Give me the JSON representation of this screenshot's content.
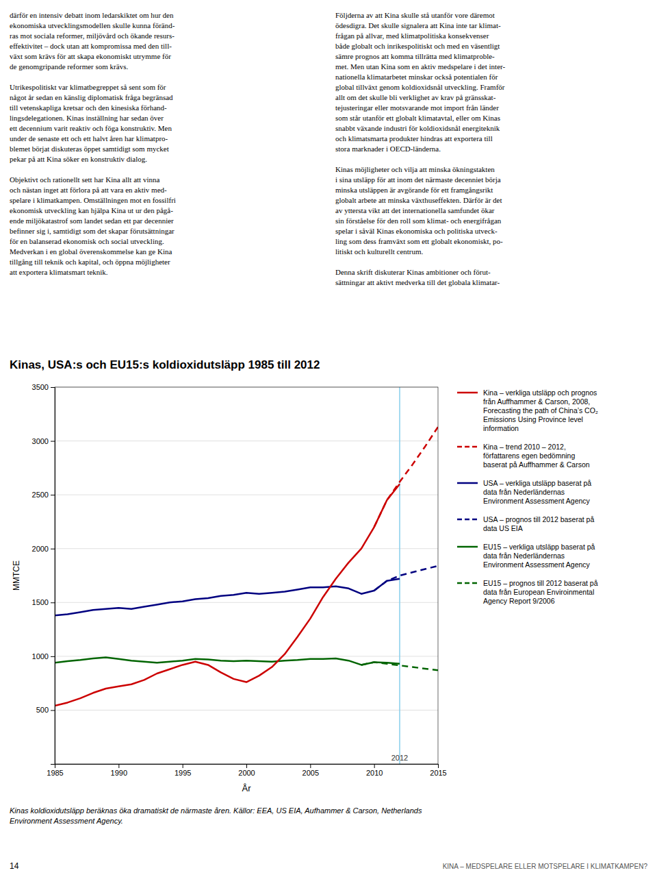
{
  "chart_data": {
    "type": "line",
    "title": "Kinas, USA:s och EU15:s koldioxidutsläpp 1985 till 2012",
    "xlabel": "År",
    "ylabel": "MMTCE",
    "xlim": [
      1985,
      2015
    ],
    "ylim": [
      0,
      3500
    ],
    "xticks": [
      1985,
      1990,
      1995,
      2000,
      2005,
      2010,
      2015
    ],
    "yticks": [
      500,
      1000,
      1500,
      2000,
      2500,
      3000,
      3500
    ],
    "grid": true,
    "vline": {
      "x": 2012,
      "color": "#87CEEB"
    },
    "annotations": [
      {
        "text": "2012",
        "x": 2012,
        "y": 20
      }
    ],
    "series": [
      {
        "name": "Kina – verkliga utsläpp och prognos\nfrån Auffhammer & Carson, 2008,\nForecasting the path of China’s CO₂\nEmissions Using Province level\ninformation",
        "color": "#CC0000",
        "line_style": "solid",
        "x": [
          1985,
          1986,
          1987,
          1988,
          1989,
          1990,
          1991,
          1992,
          1993,
          1994,
          1995,
          1996,
          1997,
          1998,
          1999,
          2000,
          2001,
          2002,
          2003,
          2004,
          2005,
          2006,
          2007,
          2008,
          2009,
          2010,
          2011,
          2012
        ],
        "values": [
          540,
          570,
          610,
          660,
          700,
          720,
          740,
          780,
          840,
          880,
          920,
          950,
          920,
          850,
          790,
          760,
          820,
          900,
          1020,
          1180,
          1350,
          1550,
          1720,
          1870,
          2000,
          2200,
          2450,
          2600
        ]
      },
      {
        "name": "Kina – trend 2010 – 2012,\nförfattarens egen bedömning\nbaserat på Auffhammer & Carson",
        "color": "#CC0000",
        "line_style": "dashed",
        "x": [
          2010,
          2011,
          2012,
          2013,
          2014,
          2015
        ],
        "values": [
          2200,
          2450,
          2620,
          2780,
          2950,
          3130
        ]
      },
      {
        "name": "USA – verkliga utsläpp baserat på\ndata från Nederländernas\nEnvironment Assessment Agency",
        "color": "#000080",
        "line_style": "solid",
        "x": [
          1985,
          1986,
          1987,
          1988,
          1989,
          1990,
          1991,
          1992,
          1993,
          1994,
          1995,
          1996,
          1997,
          1998,
          1999,
          2000,
          2001,
          2002,
          2003,
          2004,
          2005,
          2006,
          2007,
          2008,
          2009,
          2010,
          2011,
          2012
        ],
        "values": [
          1380,
          1390,
          1410,
          1430,
          1440,
          1450,
          1440,
          1460,
          1480,
          1500,
          1510,
          1530,
          1540,
          1560,
          1570,
          1590,
          1580,
          1590,
          1600,
          1620,
          1640,
          1640,
          1650,
          1630,
          1580,
          1610,
          1700,
          1720
        ]
      },
      {
        "name": "USA – prognos till 2012 baserat på\ndata US EIA",
        "color": "#000080",
        "line_style": "dashed",
        "x": [
          2010,
          2011,
          2012,
          2013,
          2014,
          2015
        ],
        "values": [
          1610,
          1700,
          1750,
          1780,
          1810,
          1840
        ]
      },
      {
        "name": "EU15 – verkliga utsläpp baserat på\ndata från Nederländernas\nEnvironment Assessment Agency",
        "color": "#006400",
        "line_style": "solid",
        "x": [
          1985,
          1986,
          1987,
          1988,
          1989,
          1990,
          1991,
          1992,
          1993,
          1994,
          1995,
          1996,
          1997,
          1998,
          1999,
          2000,
          2001,
          2002,
          2003,
          2004,
          2005,
          2006,
          2007,
          2008,
          2009,
          2010,
          2011,
          2012
        ],
        "values": [
          940,
          955,
          965,
          980,
          990,
          975,
          960,
          950,
          940,
          950,
          960,
          975,
          970,
          960,
          955,
          960,
          955,
          950,
          960,
          965,
          975,
          975,
          980,
          960,
          920,
          945,
          940,
          930
        ]
      },
      {
        "name": "EU15 – prognos till 2012 baserat på\ndata från European Enviroinmental\nAgency Report 9/2006",
        "color": "#006400",
        "line_style": "dashed",
        "x": [
          2009,
          2010,
          2011,
          2012,
          2013,
          2014,
          2015
        ],
        "values": [
          920,
          945,
          930,
          915,
          900,
          885,
          870
        ]
      }
    ],
    "caption": "Kinas koldioxidutsläpp beräknas öka dramatiskt de närmaste åren. Källor: EEA, US EIA, Aufhammer & Carson, Netherlands\nEnvironment Assessment Agency.",
    "page_number": "14",
    "footer": "KINA – MEDSPELARE ELLER MOTSPELARE I KLIMATKAMPEN?",
    "body_text_left": "därför en intensiv debatt inom ledarskiktet om hur den\nekonomiska utvecklingsmodellen skulle kunna föränd-\nras mot sociala reformer, miljövård och ökande resurs-\neffektivitet – dock utan att kompromissa med den till-\nväxt som krävs för att skapa ekonomiskt utrymme för\nde genomgripande reformer som krävs.\n\nUtrikespolitiskt var klimatbegreppet så sent som för\nnågot år sedan en känslig diplomatisk fråga begränsad\ntill vetenskapliga kretsar och den kinesiska förhand-\nlingsdelegationen. Kinas inställning har sedan över\nett decennium varit reaktiv och föga konstruktiv. Men\nunder de senaste ett och ett halvt åren har klimatpro-\nblemet börjat diskuteras öppet samtidigt som mycket\npekar på att Kina söker en konstruktiv dialog.\n\nObjektivt och rationellt sett har Kina allt att vinna\noch nästan inget att förlora på att vara en aktiv med-\nspelare i klimatkampen. Omställningen mot en fossilfri\nekonomisk utveckling kan hjälpa Kina ut ur den pågå-\nende miljökatastrof som landet sedan ett par decennier\nbefinner sig i, samtidigt som det skapar förutsättningar\nför en balanserad ekonomisk och social utveckling.\nMedverkan i en global överenskommelse kan ge Kina\ntillgång till teknik och kapital, och öppna möjligheter\natt exportera klimatsmart teknik.",
    "body_text_right": "Följderna av att Kina skulle stå utanför vore däremot\nödesdigra. Det skulle signalera att Kina inte tar klimat-\nfrågan på allvar, med klimatpolitiska konsekvenser\nbåde globalt och inrikespolitiskt och med en väsentligt\nsämre prognos att komma tillrätta med klimatproble-\nmet. Men utan Kina som en aktiv medspelare i det inter-\nnationella klimatarbetet minskar också potentialen för\nglobal tillväxt genom koldioxidsnål utveckling. Framför\nallt om det skulle bli verklighet av krav på gränsskat-\ntejusteringar eller motsvarande mot import från länder\nsom står utanför ett globalt klimatavtal, eller om Kinas\nsnabbt växande industri för koldioxidsnål energiteknik\noch klimatsmarta produkter hindras att exportera till\nstora marknader i OECD-länderna.\n\nKinas möjligheter och vilja att minska ökningstakten\ni sina utsläpp för att inom det närmaste decenniet börja\nminska utsläppen är avgörande för ett framgångsrikt\nglobalt arbete att minska växthuseffekten. Därför är det\nav yttersta vikt att det internationella samfundet ökar\nsin förståelse för den roll som klimat- och energifrågan\nspelar i såväl Kinas ekonomiska och politiska utveck-\nling som dess framväxt som ett globalt ekonomiskt, po-\nlitiskt och kulturellt centrum.\n\nDenna skrift diskuterar Kinas ambitioner och förut-\nsättningar att aktivt medverka till det globala klimatar-"
  }
}
